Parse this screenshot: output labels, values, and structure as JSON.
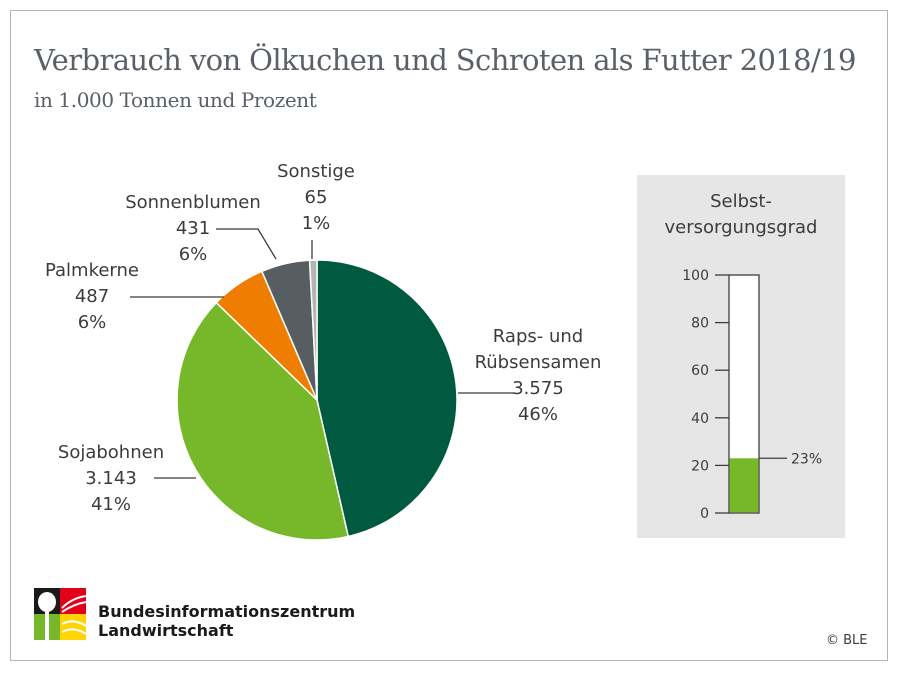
{
  "title": "Verbrauch von Ölkuchen und Schroten als Futter 2018/19",
  "subtitle": "in 1.000 Tonnen und Prozent",
  "chart_data": [
    {
      "type": "pie",
      "title": "Verbrauch von Ölkuchen und Schroten als Futter 2018/19",
      "subtitle": "in 1.000 Tonnen und Prozent",
      "unit": "1.000 Tonnen",
      "slices": [
        {
          "name": "Raps- und Rübsensamen",
          "label_lines": [
            "Raps- und",
            "Rübsensamen"
          ],
          "value": 3575,
          "value_label": "3.575",
          "percent": 46,
          "percent_label": "46%",
          "color": "#005a3f"
        },
        {
          "name": "Sojabohnen",
          "label_lines": [
            "Sojabohnen"
          ],
          "value": 3143,
          "value_label": "3.143",
          "percent": 41,
          "percent_label": "41%",
          "color": "#76b82a"
        },
        {
          "name": "Palmkerne",
          "label_lines": [
            "Palmkerne"
          ],
          "value": 487,
          "value_label": "487",
          "percent": 6,
          "percent_label": "6%",
          "color": "#ef7d00"
        },
        {
          "name": "Sonnenblumen",
          "label_lines": [
            "Sonnenblumen"
          ],
          "value": 431,
          "value_label": "431",
          "percent": 6,
          "percent_label": "6%",
          "color": "#575e62"
        },
        {
          "name": "Sonstige",
          "label_lines": [
            "Sonstige"
          ],
          "value": 65,
          "value_label": "65",
          "percent": 1,
          "percent_label": "1%",
          "color": "#b4b4b4"
        }
      ],
      "start": "top",
      "direction": "clockwise"
    },
    {
      "type": "bar",
      "title": "Selbst-versorgungsgrad",
      "title_lines": [
        "Selbst-",
        "versorgungsgrad"
      ],
      "ylim": [
        0,
        100
      ],
      "yticks": [
        0,
        20,
        40,
        60,
        80,
        100
      ],
      "value": 23,
      "value_label": "23%",
      "fill_color": "#76b82a"
    }
  ],
  "footer": {
    "org_line1": "Bundesinformationszentrum",
    "org_line2": "Landwirtschaft",
    "copyright": "© BLE"
  }
}
